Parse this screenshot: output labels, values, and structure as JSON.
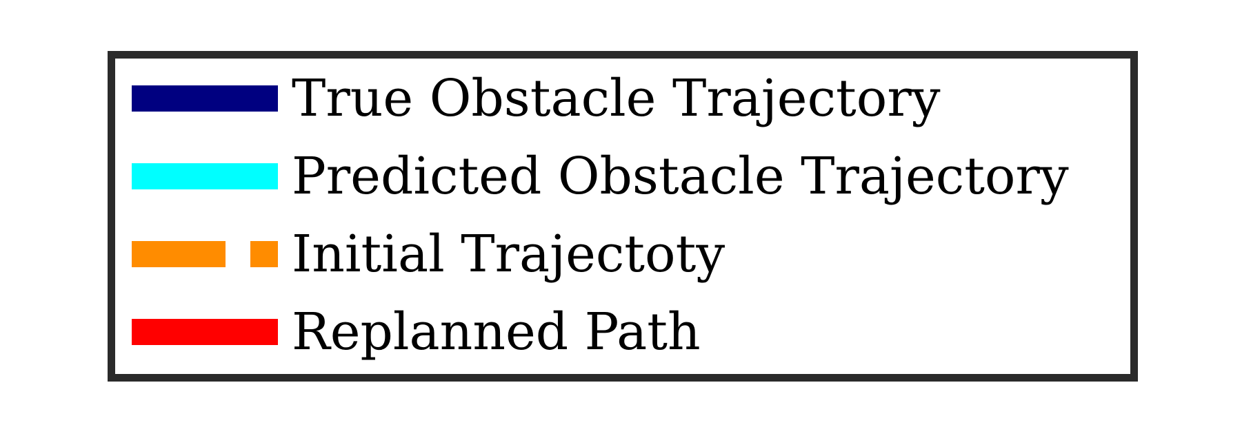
{
  "chart_data": {
    "type": "line",
    "legend": {
      "placement": "standalone",
      "entries": [
        {
          "label": "True Obstacle Trajectory",
          "color": "#000080",
          "linestyle": "solid"
        },
        {
          "label": "Predicted Obstacle Trajectory",
          "color": "#00FFFF",
          "linestyle": "solid"
        },
        {
          "label": "Initial Trajectoty",
          "color": "#FF8C00",
          "linestyle": "dashed"
        },
        {
          "label": "Replanned Path",
          "color": "#FF0000",
          "linestyle": "solid"
        }
      ]
    }
  }
}
